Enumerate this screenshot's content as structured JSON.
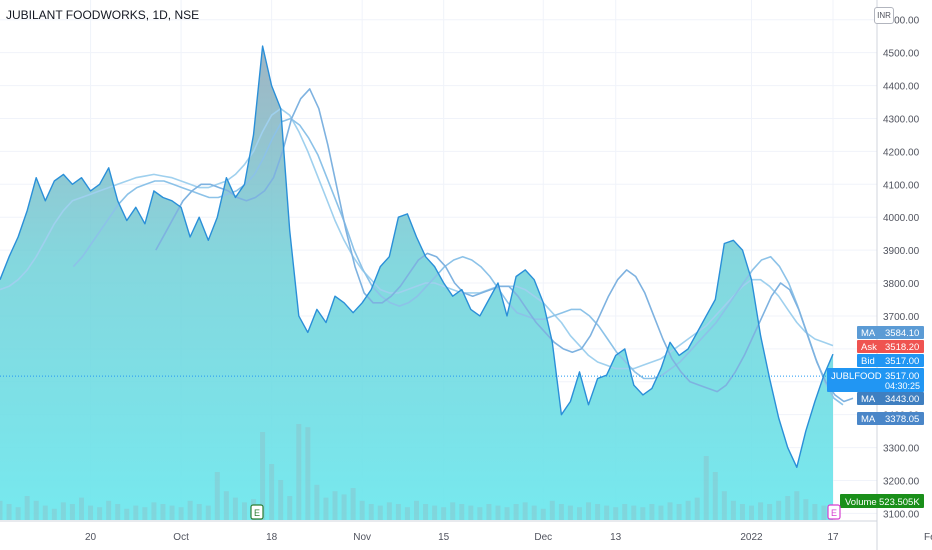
{
  "title": "JUBILANT FOODWORKS, 1D, NSE",
  "currency": "INR",
  "chart_data": {
    "type": "area",
    "ylim": [
      3080,
      4660
    ],
    "y_ticks": [
      3100,
      3200,
      3300,
      3400,
      3500,
      3600,
      3700,
      3800,
      3900,
      4000,
      4100,
      4200,
      4300,
      4400,
      4500,
      4600
    ],
    "y_tick_labels": [
      "3100.00",
      "3200.00",
      "3300.00",
      "3400.00",
      "3500.00",
      "3600.00",
      "3700.00",
      "3800.00",
      "3900.00",
      "4000.00",
      "4100.00",
      "4200.00",
      "4300.00",
      "4400.00",
      "4500.00",
      "4600.00"
    ],
    "x_ticks": [
      {
        "i": 10,
        "label": "20"
      },
      {
        "i": 20,
        "label": "Oct"
      },
      {
        "i": 30,
        "label": "18"
      },
      {
        "i": 40,
        "label": "Nov"
      },
      {
        "i": 49,
        "label": "15"
      },
      {
        "i": 60,
        "label": "Dec"
      },
      {
        "i": 68,
        "label": "13"
      },
      {
        "i": 83,
        "label": "2022"
      },
      {
        "i": 92,
        "label": "17"
      },
      {
        "i": 103,
        "label": "Feb"
      }
    ],
    "price": [
      3810,
      3880,
      3940,
      4020,
      4120,
      4050,
      4110,
      4130,
      4100,
      4120,
      4080,
      4100,
      4150,
      4050,
      3990,
      4030,
      3980,
      4080,
      4060,
      4050,
      4030,
      3940,
      4000,
      3930,
      4000,
      4120,
      4060,
      4100,
      4250,
      4520,
      4400,
      4330,
      3960,
      3700,
      3650,
      3720,
      3680,
      3760,
      3740,
      3710,
      3740,
      3780,
      3850,
      3880,
      4000,
      4010,
      3940,
      3880,
      3850,
      3800,
      3760,
      3780,
      3720,
      3700,
      3750,
      3800,
      3700,
      3820,
      3840,
      3810,
      3740,
      3620,
      3400,
      3440,
      3530,
      3430,
      3510,
      3520,
      3580,
      3600,
      3490,
      3460,
      3480,
      3540,
      3620,
      3580,
      3600,
      3650,
      3700,
      3750,
      3920,
      3930,
      3900,
      3810,
      3640,
      3510,
      3390,
      3300,
      3240,
      3350,
      3440,
      3520,
      3584
    ],
    "price_dates_note": "",
    "ma_series": [
      {
        "values": [
          3780,
          3790,
          3810,
          3840,
          3880,
          3930,
          3980,
          4020,
          4050,
          4060,
          4070,
          4080,
          4090,
          4100,
          4110,
          4120,
          4125,
          4130,
          4125,
          4120,
          4110,
          4100,
          4090,
          4090,
          4100,
          4110,
          4130,
          4160,
          4200,
          4260,
          4310,
          4330,
          4310,
          4260,
          4200,
          4130,
          4060,
          3990,
          3930,
          3880,
          3840,
          3810,
          3780,
          3770,
          3770,
          3780,
          3790,
          3800,
          3800,
          3790,
          3780,
          3770,
          3770,
          3770,
          3780,
          3790,
          3790,
          3790,
          3780,
          3760,
          3740,
          3710,
          3680,
          3640,
          3610,
          3580,
          3560,
          3550,
          3540,
          3540,
          3540,
          3550,
          3560,
          3570,
          3590,
          3610,
          3630,
          3650,
          3670,
          3700,
          3730,
          3760,
          3790,
          3810,
          3810,
          3790,
          3760,
          3720,
          3680,
          3650,
          3630,
          3620,
          3610
        ]
      },
      {
        "values": [
          3850,
          3880,
          3920,
          3960,
          4000,
          4040,
          4070,
          4090,
          4100,
          4110,
          4110,
          4100,
          4090,
          4080,
          4070,
          4060,
          4060,
          4070,
          4080,
          4100,
          4130,
          4180,
          4240,
          4290,
          4300,
          4280,
          4240,
          4190,
          4120,
          4050,
          3980,
          3900,
          3840,
          3790,
          3760,
          3740,
          3730,
          3740,
          3760,
          3790,
          3820,
          3850,
          3870,
          3880,
          3870,
          3850,
          3820,
          3780,
          3740,
          3710,
          3700,
          3690,
          3690,
          3700,
          3710,
          3720,
          3720,
          3700,
          3670,
          3630,
          3590,
          3560,
          3530,
          3510,
          3510,
          3520,
          3540,
          3560,
          3590,
          3620,
          3650,
          3680,
          3720,
          3760,
          3800,
          3840,
          3870,
          3880,
          3850,
          3800,
          3730,
          3650,
          3570,
          3500,
          3450,
          3430
        ]
      },
      {
        "values": [
          3900,
          3950,
          4000,
          4050,
          4080,
          4100,
          4100,
          4090,
          4080,
          4060,
          4050,
          4060,
          4080,
          4120,
          4200,
          4300,
          4360,
          4390,
          4330,
          4220,
          4090,
          3960,
          3850,
          3770,
          3740,
          3740,
          3760,
          3790,
          3830,
          3870,
          3890,
          3880,
          3850,
          3800,
          3770,
          3760,
          3770,
          3780,
          3790,
          3790,
          3760,
          3720,
          3680,
          3650,
          3620,
          3600,
          3590,
          3600,
          3640,
          3700,
          3760,
          3810,
          3840,
          3820,
          3770,
          3700,
          3630,
          3570,
          3530,
          3500,
          3490,
          3480,
          3470,
          3490,
          3530,
          3580,
          3640,
          3700,
          3760,
          3800,
          3780,
          3720,
          3640,
          3560,
          3500,
          3460,
          3440,
          3450
        ]
      }
    ],
    "volume": [
      0.12,
      0.1,
      0.08,
      0.15,
      0.12,
      0.09,
      0.07,
      0.11,
      0.1,
      0.14,
      0.09,
      0.08,
      0.12,
      0.1,
      0.07,
      0.09,
      0.08,
      0.11,
      0.1,
      0.09,
      0.08,
      0.12,
      0.1,
      0.09,
      0.3,
      0.18,
      0.14,
      0.11,
      0.13,
      0.55,
      0.35,
      0.25,
      0.15,
      0.6,
      0.58,
      0.22,
      0.14,
      0.18,
      0.16,
      0.2,
      0.12,
      0.1,
      0.09,
      0.11,
      0.1,
      0.08,
      0.12,
      0.1,
      0.09,
      0.08,
      0.11,
      0.1,
      0.09,
      0.08,
      0.1,
      0.09,
      0.08,
      0.1,
      0.11,
      0.09,
      0.07,
      0.12,
      0.1,
      0.09,
      0.08,
      0.11,
      0.1,
      0.09,
      0.08,
      0.1,
      0.09,
      0.08,
      0.1,
      0.09,
      0.11,
      0.1,
      0.12,
      0.14,
      0.4,
      0.3,
      0.18,
      0.12,
      0.1,
      0.09,
      0.11,
      0.1,
      0.12,
      0.15,
      0.18,
      0.13,
      0.1,
      0.09,
      0.08
    ],
    "price_labels": [
      {
        "tag": "MA",
        "value": "3584.10",
        "color": "#5b9bd5"
      },
      {
        "tag": "Ask",
        "value": "3518.20",
        "color": "#ef5350"
      },
      {
        "tag": "Bid",
        "value": "3517.00",
        "color": "#2196f3"
      },
      {
        "tag": "JUBLFOOD",
        "value": "3517.00",
        "sub": "04:30:25",
        "color": "#2196f3"
      },
      {
        "tag": "MA",
        "value": "3443.00",
        "color": "#3f7fc0"
      },
      {
        "tag": "MA",
        "value": "3378.05",
        "color": "#4a86c8"
      }
    ],
    "volume_label": {
      "tag": "Volume",
      "value": "523.505K",
      "color": "#1a8f1a"
    },
    "current_price": 3517,
    "earnings_marker": "E"
  }
}
